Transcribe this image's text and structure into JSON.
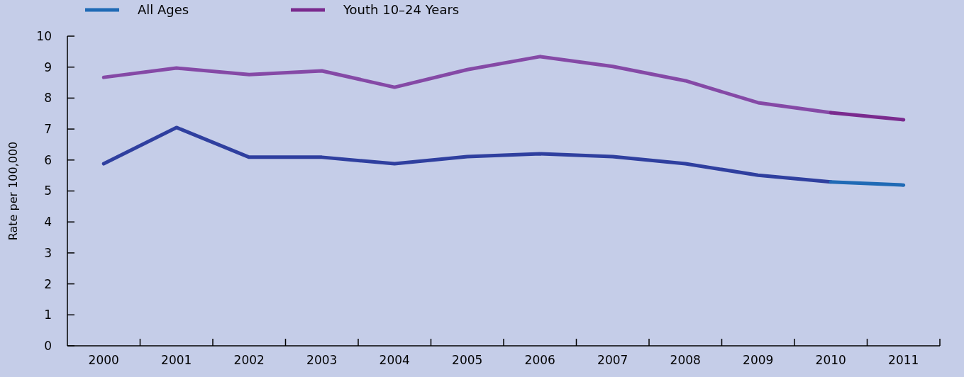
{
  "chart_data": {
    "type": "line",
    "ylabel": "Rate per 100,000",
    "categories": [
      "2000",
      "2001",
      "2002",
      "2003",
      "2004",
      "2005",
      "2006",
      "2007",
      "2008",
      "2009",
      "2010",
      "2011"
    ],
    "ylim": [
      0,
      10
    ],
    "yticks": [
      0,
      1,
      2,
      3,
      4,
      5,
      6,
      7,
      8,
      9,
      10
    ],
    "grid": false,
    "legend": "top left",
    "marker": "none",
    "line_style": "solid",
    "series": [
      {
        "color": "#8549a6",
        "values": [
          8.67,
          8.97,
          8.76,
          8.88,
          8.35,
          8.92,
          9.34,
          9.02,
          8.56,
          7.85,
          7.53,
          null
        ]
      },
      {
        "color": "#2f3f9f",
        "values": [
          5.88,
          7.05,
          6.09,
          6.09,
          5.88,
          6.11,
          6.2,
          6.11,
          5.88,
          5.51,
          5.29,
          null
        ]
      },
      {
        "name": "All Ages",
        "color": "#1f6ab5",
        "values": [
          null,
          null,
          null,
          null,
          null,
          null,
          null,
          null,
          null,
          null,
          5.29,
          5.19
        ]
      },
      {
        "name": "Youth 10–24 Years",
        "color": "#7a2a8e",
        "values": [
          null,
          null,
          null,
          null,
          null,
          null,
          null,
          null,
          null,
          null,
          7.53,
          7.3
        ]
      }
    ]
  }
}
